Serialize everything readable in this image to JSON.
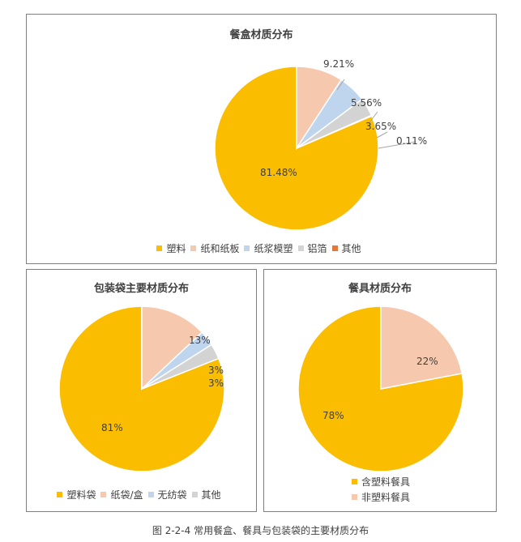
{
  "chart_data": [
    {
      "type": "pie",
      "title": "餐盒材质分布",
      "categories": [
        "塑料",
        "纸和纸板",
        "纸浆模塑",
        "铝箔",
        "其他"
      ],
      "values": [
        81.48,
        9.21,
        5.56,
        3.65,
        0.11
      ],
      "data_labels": [
        "81.48%",
        "9.21%",
        "5.56%",
        "3.65%",
        "0.11%"
      ],
      "colors": [
        "#FBBD00",
        "#F6C9AE",
        "#BFD5EE",
        "#D3D3D3",
        "#E0793B"
      ],
      "legend_position": "bottom"
    },
    {
      "type": "pie",
      "title": "包装袋主要材质分布",
      "categories": [
        "塑料袋",
        "纸袋/盒",
        "无纺袋",
        "其他"
      ],
      "values": [
        81,
        13,
        3,
        3
      ],
      "data_labels": [
        "81%",
        "13%",
        "3%",
        "3%"
      ],
      "colors": [
        "#FBBD00",
        "#F6C9AE",
        "#BFD5EE",
        "#D3D3D3"
      ],
      "legend_position": "bottom"
    },
    {
      "type": "pie",
      "title": "餐具材质分布",
      "categories": [
        "含塑料餐具",
        "非塑料餐具"
      ],
      "values": [
        78,
        22
      ],
      "data_labels": [
        "78%",
        "22%"
      ],
      "colors": [
        "#FBBD00",
        "#F6C9AE"
      ],
      "legend_position": "bottom"
    }
  ],
  "caption": "图 2-2-4 常用餐盒、餐具与包装袋的主要材质分布"
}
